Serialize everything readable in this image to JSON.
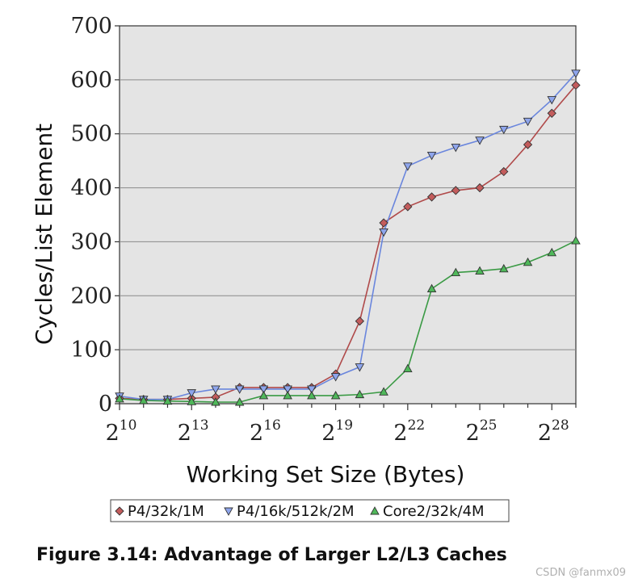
{
  "chart_data": {
    "type": "line",
    "ylabel": "Cycles/List Element",
    "xlabel": "Working Set Size (Bytes)",
    "ylim": [
      0,
      700
    ],
    "yticks": [
      0,
      100,
      200,
      300,
      400,
      500,
      600,
      700
    ],
    "x_base": "2",
    "x_exponents": [
      10,
      11,
      12,
      13,
      14,
      15,
      16,
      17,
      18,
      19,
      20,
      21,
      22,
      23,
      24,
      25,
      26,
      27,
      28,
      29
    ],
    "xticks": [
      10,
      13,
      16,
      19,
      22,
      25,
      28
    ],
    "xlim": [
      10,
      29
    ],
    "grid": "horizontal",
    "series": [
      {
        "name": "P4/32k/1M",
        "marker": "diamond",
        "color": "#b04a4a",
        "fill": "#c35c5c",
        "values": [
          10,
          8,
          8,
          10,
          12,
          30,
          30,
          30,
          30,
          55,
          153,
          335,
          365,
          383,
          395,
          400,
          430,
          480,
          538,
          590
        ]
      },
      {
        "name": "P4/16k/512k/2M",
        "marker": "triangle-down",
        "color": "#6a86dd",
        "fill": "#8ea5ec",
        "values": [
          14,
          8,
          8,
          20,
          27,
          27,
          27,
          27,
          27,
          50,
          68,
          318,
          440,
          460,
          475,
          488,
          508,
          523,
          563,
          612
        ]
      },
      {
        "name": "Core2/32k/4M",
        "marker": "triangle-up",
        "color": "#3a9a44",
        "fill": "#4fb85a",
        "values": [
          9,
          6,
          5,
          4,
          3,
          3,
          15,
          15,
          15,
          15,
          17,
          22,
          65,
          213,
          243,
          246,
          250,
          262,
          280,
          302
        ]
      }
    ]
  },
  "caption": "Figure 3.14: Advantage of Larger L2/L3 Caches",
  "watermark": "CSDN @fanmx09"
}
